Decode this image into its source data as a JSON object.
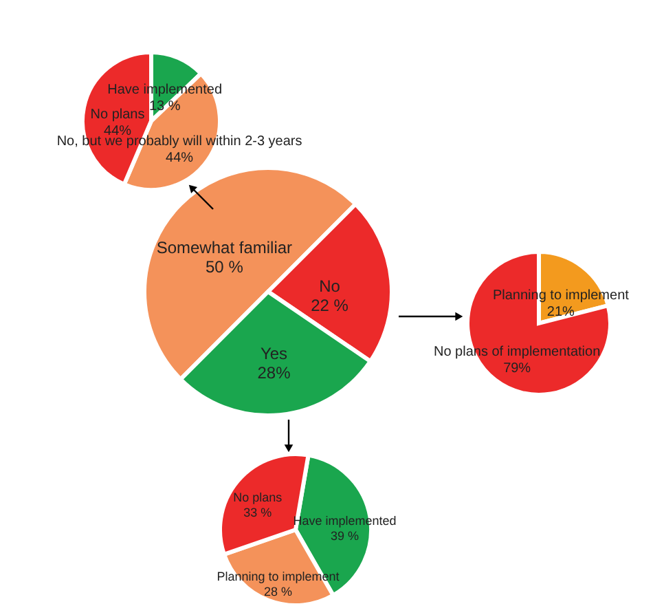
{
  "chart_data": [
    {
      "type": "pie",
      "categories": [
        "Have implemented",
        "No, but we probably will within 2-3 years",
        "No plans"
      ],
      "values": [
        13,
        44,
        44
      ],
      "colors": [
        "#1aa64e",
        "#f4925a",
        "#ec2a2a"
      ],
      "value_labels": [
        "13 %",
        "44%",
        "44%"
      ]
    },
    {
      "type": "pie",
      "categories": [
        "Somewhat familiar",
        "No",
        "Yes"
      ],
      "values": [
        50,
        22,
        28
      ],
      "colors": [
        "#f4925a",
        "#ec2a2a",
        "#1aa64e"
      ],
      "value_labels": [
        "50 %",
        "22 %",
        "28%"
      ]
    },
    {
      "type": "pie",
      "categories": [
        "Planning to implement",
        "No plans of implementation"
      ],
      "values": [
        21,
        79
      ],
      "colors": [
        "#f39a1e",
        "#ec2a2a"
      ],
      "value_labels": [
        "21%",
        "79%"
      ]
    },
    {
      "type": "pie",
      "categories": [
        "Have implemented",
        "Planning to implement",
        "No plans"
      ],
      "values": [
        39,
        28,
        33
      ],
      "colors": [
        "#1aa64e",
        "#f4925a",
        "#ec2a2a"
      ],
      "value_labels": [
        "39 %",
        "28 %",
        "33 %"
      ]
    }
  ]
}
